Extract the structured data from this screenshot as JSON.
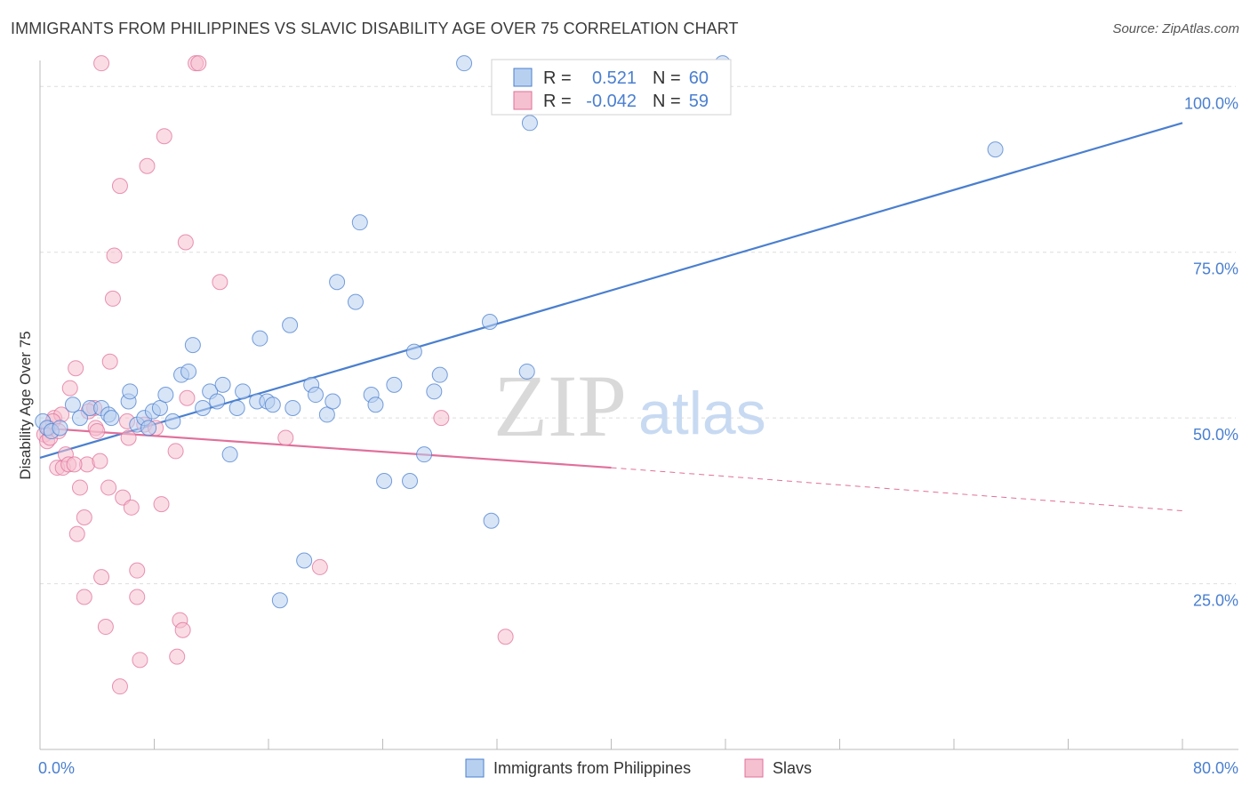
{
  "title": "IMMIGRANTS FROM PHILIPPINES VS SLAVIC DISABILITY AGE OVER 75 CORRELATION CHART",
  "source": "Source: ZipAtlas.com",
  "watermark": {
    "zip": "ZIP",
    "atlas": "atlas"
  },
  "colors": {
    "blue": "#4a7fcf",
    "blue_fill": "#b8d0f0",
    "pink": "#e0709a",
    "pink_fill": "#f5c0d0"
  },
  "legend": {
    "r_label": "R =",
    "n_label": "N =",
    "series1": {
      "r": "0.521",
      "n": "60"
    },
    "series2": {
      "r": "-0.042",
      "n": "59"
    }
  },
  "chart_data": {
    "type": "scatter",
    "title": "IMMIGRANTS FROM PHILIPPINES VS SLAVIC DISABILITY AGE OVER 75 CORRELATION CHART",
    "xlabel": "",
    "ylabel": "Disability Age Over 75",
    "xlim": [
      0,
      80
    ],
    "ylim": [
      0,
      105
    ],
    "x_ticks": [
      "0.0%",
      "80.0%"
    ],
    "y_ticks": [
      "25.0%",
      "50.0%",
      "75.0%",
      "100.0%"
    ],
    "grid": true,
    "legend_position": "top-center",
    "series": [
      {
        "name": "Immigrants from Philippines",
        "color": "#4a7fcf",
        "trend": {
          "x": [
            0,
            80
          ],
          "y": [
            44.0,
            94.5
          ]
        },
        "points": [
          {
            "x": 0.2,
            "y": 49.5
          },
          {
            "x": 0.5,
            "y": 48.5
          },
          {
            "x": 0.8,
            "y": 48.0
          },
          {
            "x": 1.4,
            "y": 48.5
          },
          {
            "x": 2.3,
            "y": 52.0
          },
          {
            "x": 2.8,
            "y": 50.0
          },
          {
            "x": 3.5,
            "y": 51.5
          },
          {
            "x": 4.3,
            "y": 51.5
          },
          {
            "x": 4.8,
            "y": 50.5
          },
          {
            "x": 5.0,
            "y": 50.0
          },
          {
            "x": 6.2,
            "y": 52.5
          },
          {
            "x": 6.3,
            "y": 54.0
          },
          {
            "x": 6.8,
            "y": 49.0
          },
          {
            "x": 7.3,
            "y": 50.0
          },
          {
            "x": 7.9,
            "y": 51.0
          },
          {
            "x": 7.6,
            "y": 48.5
          },
          {
            "x": 8.4,
            "y": 51.5
          },
          {
            "x": 8.8,
            "y": 53.5
          },
          {
            "x": 9.3,
            "y": 49.5
          },
          {
            "x": 9.9,
            "y": 56.5
          },
          {
            "x": 10.4,
            "y": 57.0
          },
          {
            "x": 10.7,
            "y": 61.0
          },
          {
            "x": 11.4,
            "y": 51.5
          },
          {
            "x": 11.9,
            "y": 54.0
          },
          {
            "x": 12.4,
            "y": 52.5
          },
          {
            "x": 12.8,
            "y": 55.0
          },
          {
            "x": 13.3,
            "y": 44.5
          },
          {
            "x": 13.8,
            "y": 51.5
          },
          {
            "x": 14.2,
            "y": 54.0
          },
          {
            "x": 15.2,
            "y": 52.5
          },
          {
            "x": 15.4,
            "y": 62.0
          },
          {
            "x": 15.9,
            "y": 52.5
          },
          {
            "x": 16.3,
            "y": 52.0
          },
          {
            "x": 16.8,
            "y": 22.5
          },
          {
            "x": 17.5,
            "y": 64.0
          },
          {
            "x": 17.7,
            "y": 51.5
          },
          {
            "x": 18.5,
            "y": 28.5
          },
          {
            "x": 19.0,
            "y": 55.0
          },
          {
            "x": 19.3,
            "y": 53.5
          },
          {
            "x": 20.1,
            "y": 50.5
          },
          {
            "x": 20.5,
            "y": 52.5
          },
          {
            "x": 20.8,
            "y": 70.5
          },
          {
            "x": 22.1,
            "y": 67.5
          },
          {
            "x": 22.4,
            "y": 79.5
          },
          {
            "x": 23.2,
            "y": 53.5
          },
          {
            "x": 23.5,
            "y": 52.0
          },
          {
            "x": 24.1,
            "y": 40.5
          },
          {
            "x": 24.8,
            "y": 55.0
          },
          {
            "x": 25.9,
            "y": 40.5
          },
          {
            "x": 26.2,
            "y": 60.0
          },
          {
            "x": 26.9,
            "y": 44.5
          },
          {
            "x": 27.6,
            "y": 54.0
          },
          {
            "x": 28.0,
            "y": 56.5
          },
          {
            "x": 29.7,
            "y": 103.5
          },
          {
            "x": 31.5,
            "y": 64.5
          },
          {
            "x": 31.6,
            "y": 34.5
          },
          {
            "x": 34.1,
            "y": 57.0
          },
          {
            "x": 34.3,
            "y": 94.5
          },
          {
            "x": 47.8,
            "y": 103.5
          },
          {
            "x": 66.9,
            "y": 90.5
          }
        ]
      },
      {
        "name": "Slavs",
        "color": "#e0709a",
        "trend": {
          "x": [
            0,
            40
          ],
          "y": [
            48.5,
            42.5
          ]
        },
        "trend_dashed": {
          "x": [
            40,
            80
          ],
          "y": [
            42.5,
            36.0
          ]
        },
        "points": [
          {
            "x": 0.3,
            "y": 47.5
          },
          {
            "x": 0.5,
            "y": 46.5
          },
          {
            "x": 0.7,
            "y": 47.0
          },
          {
            "x": 1.0,
            "y": 50.0
          },
          {
            "x": 1.2,
            "y": 42.5
          },
          {
            "x": 1.5,
            "y": 50.5
          },
          {
            "x": 1.6,
            "y": 42.5
          },
          {
            "x": 1.8,
            "y": 44.5
          },
          {
            "x": 2.0,
            "y": 43.0
          },
          {
            "x": 2.1,
            "y": 54.5
          },
          {
            "x": 2.5,
            "y": 57.5
          },
          {
            "x": 2.6,
            "y": 32.5
          },
          {
            "x": 2.8,
            "y": 39.5
          },
          {
            "x": 3.1,
            "y": 35.0
          },
          {
            "x": 3.1,
            "y": 23.0
          },
          {
            "x": 3.3,
            "y": 43.0
          },
          {
            "x": 3.8,
            "y": 51.5
          },
          {
            "x": 3.9,
            "y": 48.5
          },
          {
            "x": 4.0,
            "y": 48.0
          },
          {
            "x": 4.2,
            "y": 43.5
          },
          {
            "x": 4.3,
            "y": 26.0
          },
          {
            "x": 4.3,
            "y": 103.5
          },
          {
            "x": 4.6,
            "y": 18.5
          },
          {
            "x": 4.8,
            "y": 39.5
          },
          {
            "x": 4.9,
            "y": 58.5
          },
          {
            "x": 5.1,
            "y": 68.0
          },
          {
            "x": 5.2,
            "y": 74.5
          },
          {
            "x": 5.6,
            "y": 9.5
          },
          {
            "x": 5.6,
            "y": 85.0
          },
          {
            "x": 5.8,
            "y": 38.0
          },
          {
            "x": 6.1,
            "y": 49.5
          },
          {
            "x": 6.2,
            "y": 47.0
          },
          {
            "x": 6.4,
            "y": 36.5
          },
          {
            "x": 6.8,
            "y": 27.0
          },
          {
            "x": 6.8,
            "y": 23.0
          },
          {
            "x": 7.0,
            "y": 13.5
          },
          {
            "x": 7.3,
            "y": 49.0
          },
          {
            "x": 7.5,
            "y": 88.0
          },
          {
            "x": 8.1,
            "y": 48.5
          },
          {
            "x": 8.5,
            "y": 37.0
          },
          {
            "x": 8.7,
            "y": 92.5
          },
          {
            "x": 9.5,
            "y": 45.0
          },
          {
            "x": 9.6,
            "y": 14.0
          },
          {
            "x": 9.8,
            "y": 19.5
          },
          {
            "x": 10.0,
            "y": 18.0
          },
          {
            "x": 10.2,
            "y": 76.5
          },
          {
            "x": 10.3,
            "y": 53.0
          },
          {
            "x": 10.9,
            "y": 103.5
          },
          {
            "x": 11.1,
            "y": 103.5
          },
          {
            "x": 12.6,
            "y": 70.5
          },
          {
            "x": 17.2,
            "y": 47.0
          },
          {
            "x": 19.6,
            "y": 27.5
          },
          {
            "x": 28.1,
            "y": 50.0
          },
          {
            "x": 32.6,
            "y": 17.0
          },
          {
            "x": 0.6,
            "y": 48.5
          },
          {
            "x": 0.9,
            "y": 49.5
          },
          {
            "x": 1.3,
            "y": 48.0
          },
          {
            "x": 2.4,
            "y": 43.0
          },
          {
            "x": 3.4,
            "y": 51.0
          }
        ]
      }
    ]
  }
}
